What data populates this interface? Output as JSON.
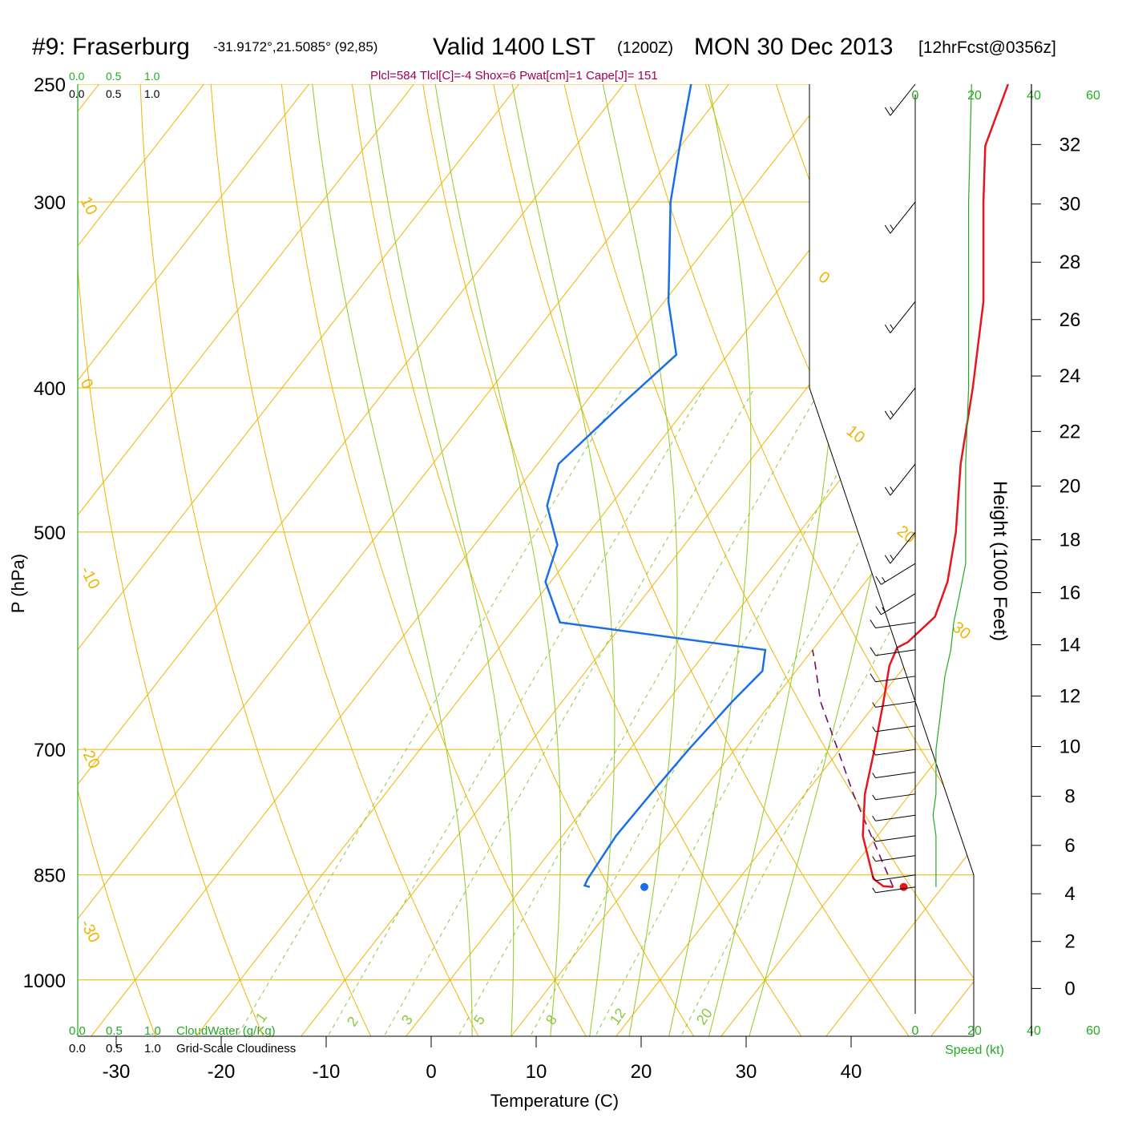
{
  "header": {
    "station": "#9: Fraserburg",
    "coords": "-31.9172°,21.5085° (92,85)",
    "valid": "Valid 1400 LST",
    "utc": "(1200Z)",
    "date": "MON 30 Dec 2013",
    "forecast": "[12hrFcst@0356z]"
  },
  "indices": "Plcl=584 Tlcl[C]=-4 Shox=6 Pwat[cm]=1 Cape[J]= 151",
  "colors": {
    "temperature": "#e8141e",
    "dewpoint": "#1a6fe8",
    "isotherm": "#f0b400",
    "adiabat": "#9acd32",
    "mixing": "#8cc83c",
    "scale_green": "#22aa22",
    "parcel": "#6a0f6a",
    "indices": "#a0004f"
  },
  "labels": {
    "cloud_scale_top_green": [
      "0.0",
      "0.5",
      "1.0"
    ],
    "cloud_scale_top_black": [
      "0.0",
      "0.5",
      "1.0"
    ],
    "cloud_scale_bottom_green": [
      "0.0",
      "0.5",
      "1.0"
    ],
    "cloud_scale_bottom_black": [
      "0.0",
      "0.5",
      "1.0"
    ],
    "cloudwater": "CloudWater (g/Kg)",
    "cloudiness": "Grid-Scale Cloudiness",
    "speed": "Speed (kt)",
    "speed_ticks": [
      "0",
      "20",
      "40",
      "60"
    ],
    "isotherm_labels": [
      "10",
      "0",
      "-10",
      "-20",
      "-30",
      "0",
      "10",
      "20",
      "30"
    ],
    "mixing_labels": [
      "1",
      "2",
      "3",
      "5",
      "8",
      "12",
      "20"
    ]
  },
  "chart_data": {
    "type": "skew-t",
    "xlabel": "Temperature (C)",
    "ylabel": "P (hPa)",
    "y2label": "Height (1000 Feet)",
    "x_ticks": [
      -30,
      -20,
      -10,
      0,
      10,
      20,
      30,
      40
    ],
    "p_ticks": [
      250,
      300,
      400,
      500,
      700,
      850,
      1000
    ],
    "height_ticks": [
      0,
      2,
      4,
      6,
      8,
      10,
      12,
      14,
      16,
      18,
      20,
      22,
      24,
      26,
      28,
      30,
      32
    ],
    "temperature": [
      {
        "p": 866,
        "t": 35.3
      },
      {
        "p": 865,
        "t": 34.3
      },
      {
        "p": 855,
        "t": 32.8
      },
      {
        "p": 800,
        "t": 28.6
      },
      {
        "p": 750,
        "t": 25.7
      },
      {
        "p": 700,
        "t": 23.3
      },
      {
        "p": 650,
        "t": 20.6
      },
      {
        "p": 615,
        "t": 18.5
      },
      {
        "p": 598,
        "t": 17.9
      },
      {
        "p": 593,
        "t": 18.5
      },
      {
        "p": 570,
        "t": 19.2
      },
      {
        "p": 540,
        "t": 17.8
      },
      {
        "p": 500,
        "t": 14.9
      },
      {
        "p": 450,
        "t": 10.3
      },
      {
        "p": 400,
        "t": 5.8
      },
      {
        "p": 350,
        "t": 0.4
      },
      {
        "p": 300,
        "t": -7.0
      },
      {
        "p": 275,
        "t": -11.0
      },
      {
        "p": 250,
        "t": -13.4
      }
    ],
    "dewpoint": [
      {
        "p": 866,
        "t": 6.4
      },
      {
        "p": 864,
        "t": 5.8
      },
      {
        "p": 855,
        "t": 5.6
      },
      {
        "p": 800,
        "t": 5.1
      },
      {
        "p": 750,
        "t": 5.3
      },
      {
        "p": 700,
        "t": 5.6
      },
      {
        "p": 650,
        "t": 6.2
      },
      {
        "p": 620,
        "t": 6.8
      },
      {
        "p": 600,
        "t": 5.5
      },
      {
        "p": 575,
        "t": -16.1
      },
      {
        "p": 540,
        "t": -20.5
      },
      {
        "p": 510,
        "t": -22.1
      },
      {
        "p": 480,
        "t": -26.0
      },
      {
        "p": 450,
        "t": -28.0
      },
      {
        "p": 410,
        "t": -26.4
      },
      {
        "p": 380,
        "t": -24.9
      },
      {
        "p": 350,
        "t": -29.6
      },
      {
        "p": 300,
        "t": -36.8
      },
      {
        "p": 275,
        "t": -40.1
      },
      {
        "p": 250,
        "t": -43.6
      }
    ],
    "parcel": [
      {
        "p": 866,
        "t": 35.3
      },
      {
        "p": 800,
        "t": 29.4
      },
      {
        "p": 750,
        "t": 24.6
      },
      {
        "p": 700,
        "t": 19.8
      },
      {
        "p": 650,
        "t": 14.6
      },
      {
        "p": 610,
        "t": 11.0
      },
      {
        "p": 600,
        "t": 10.0
      }
    ],
    "surface_temp": {
      "p": 866,
      "t": 36.3
    },
    "surface_dew": {
      "p": 866,
      "t": 11.6
    },
    "wind_pressures": [
      866,
      850,
      825,
      800,
      775,
      750,
      725,
      700,
      675,
      650,
      625,
      600,
      575,
      550,
      525,
      500,
      450,
      400,
      350,
      300,
      250
    ],
    "wind_speed_kt": [
      7,
      7,
      7,
      7,
      6,
      7,
      7,
      7,
      8,
      9,
      10,
      12,
      13,
      15,
      17,
      17,
      17,
      18,
      18,
      18,
      19
    ],
    "isobars": [
      250,
      300,
      400,
      500,
      700,
      850,
      1000
    ],
    "isotherms": [
      -120,
      -110,
      -100,
      -90,
      -80,
      -70,
      -60,
      -50,
      -40,
      -30,
      -20,
      -10,
      0,
      10,
      20,
      30,
      40,
      50
    ],
    "dry_adiabats_theta_c": [
      -30,
      -20,
      -10,
      0,
      10,
      20,
      30,
      40,
      50,
      60,
      70,
      80,
      90,
      100,
      110,
      120,
      130,
      140,
      150
    ],
    "moist_adiabats_theta_w": [
      2,
      6,
      10,
      14,
      18,
      22,
      26,
      30
    ],
    "mixing_ratios": [
      1,
      2,
      3,
      5,
      8,
      12,
      20
    ]
  }
}
